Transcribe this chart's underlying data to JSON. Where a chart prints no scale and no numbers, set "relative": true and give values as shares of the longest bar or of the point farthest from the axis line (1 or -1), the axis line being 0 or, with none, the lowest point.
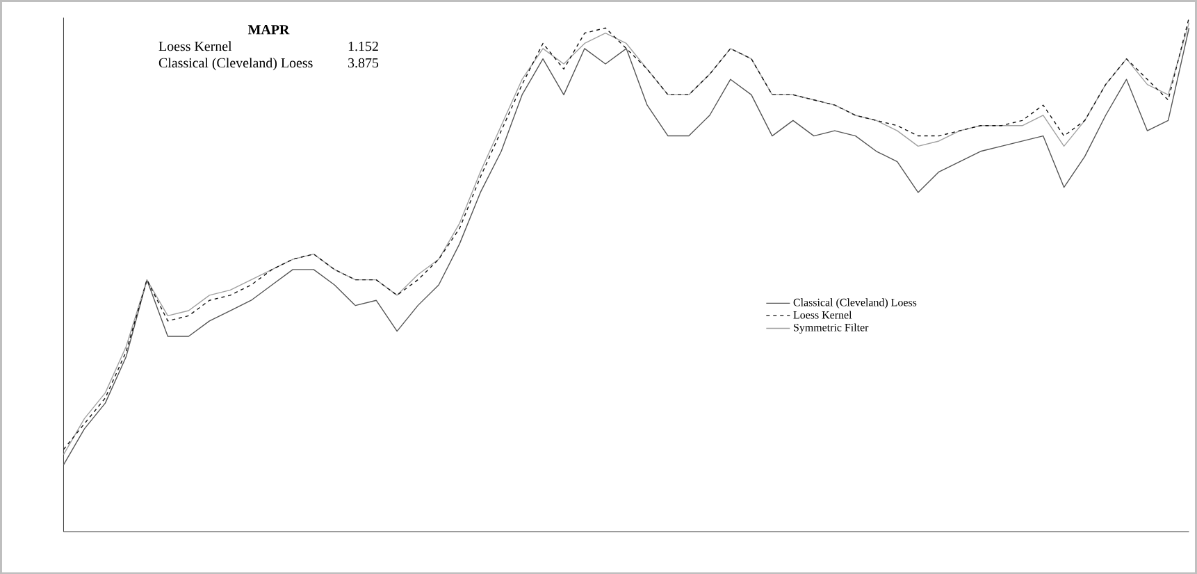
{
  "chart_data": {
    "type": "line",
    "relative": true,
    "legend": "right",
    "marker": "none",
    "categories": [
      null,
      null,
      null,
      null,
      null,
      null,
      null,
      null,
      null,
      null,
      null,
      null,
      null,
      null,
      null,
      null,
      null,
      null,
      null,
      null,
      null,
      null,
      null,
      null,
      null,
      null,
      null,
      null,
      null,
      null,
      null,
      null,
      null,
      null,
      null,
      null,
      null,
      null,
      null,
      null,
      null,
      null,
      null,
      null,
      null,
      null,
      null,
      null,
      null,
      null,
      null,
      null,
      null,
      null,
      null
    ],
    "annotations": [
      "MAPR",
      "Loess Kernel",
      "1.152",
      "Classical (Cleveland) Loess",
      "3.875"
    ],
    "series": [
      {
        "name": "Classical (Cleveland) Loess",
        "color": "#555555",
        "line_style": "solid",
        "values": [
          0.13,
          0.2,
          0.25,
          0.34,
          0.49,
          0.38,
          0.38,
          0.41,
          0.43,
          0.45,
          0.48,
          0.51,
          0.51,
          0.48,
          0.44,
          0.45,
          0.39,
          0.44,
          0.48,
          0.56,
          0.66,
          0.74,
          0.85,
          0.92,
          0.85,
          0.94,
          0.91,
          0.94,
          0.83,
          0.77,
          0.77,
          0.81,
          0.88,
          0.85,
          0.77,
          0.8,
          0.77,
          0.78,
          0.77,
          0.74,
          0.72,
          0.66,
          0.7,
          0.72,
          0.74,
          0.75,
          0.76,
          0.77,
          0.67,
          0.73,
          0.81,
          0.88,
          0.78,
          0.8,
          0.98
        ]
      },
      {
        "name": "Loess Kernel",
        "color": "#111111",
        "line_style": "dashed",
        "values": [
          0.16,
          0.21,
          0.26,
          0.35,
          0.49,
          0.41,
          0.42,
          0.45,
          0.46,
          0.48,
          0.51,
          0.53,
          0.54,
          0.51,
          0.49,
          0.49,
          0.46,
          0.49,
          0.53,
          0.59,
          0.69,
          0.78,
          0.87,
          0.95,
          0.9,
          0.97,
          0.98,
          0.94,
          0.9,
          0.85,
          0.85,
          0.89,
          0.94,
          0.92,
          0.85,
          0.85,
          0.84,
          0.83,
          0.81,
          0.8,
          0.79,
          0.77,
          0.77,
          0.78,
          0.79,
          0.79,
          0.8,
          0.83,
          0.77,
          0.8,
          0.87,
          0.92,
          0.88,
          0.84,
          1.0
        ]
      },
      {
        "name": "Symmetric Filter",
        "color": "#a0a0a0",
        "line_style": "solid",
        "values": [
          0.15,
          0.22,
          0.27,
          0.36,
          0.49,
          0.42,
          0.43,
          0.46,
          0.47,
          0.49,
          0.51,
          0.53,
          0.54,
          0.51,
          0.49,
          0.49,
          0.46,
          0.5,
          0.53,
          0.6,
          0.7,
          0.79,
          0.88,
          0.94,
          0.91,
          0.95,
          0.97,
          0.95,
          0.9,
          0.85,
          0.85,
          0.89,
          0.94,
          0.92,
          0.85,
          0.85,
          0.84,
          0.83,
          0.81,
          0.8,
          0.78,
          0.75,
          0.76,
          0.78,
          0.79,
          0.79,
          0.79,
          0.81,
          0.75,
          0.8,
          0.87,
          0.92,
          0.87,
          0.85,
          0.99
        ]
      }
    ]
  }
}
